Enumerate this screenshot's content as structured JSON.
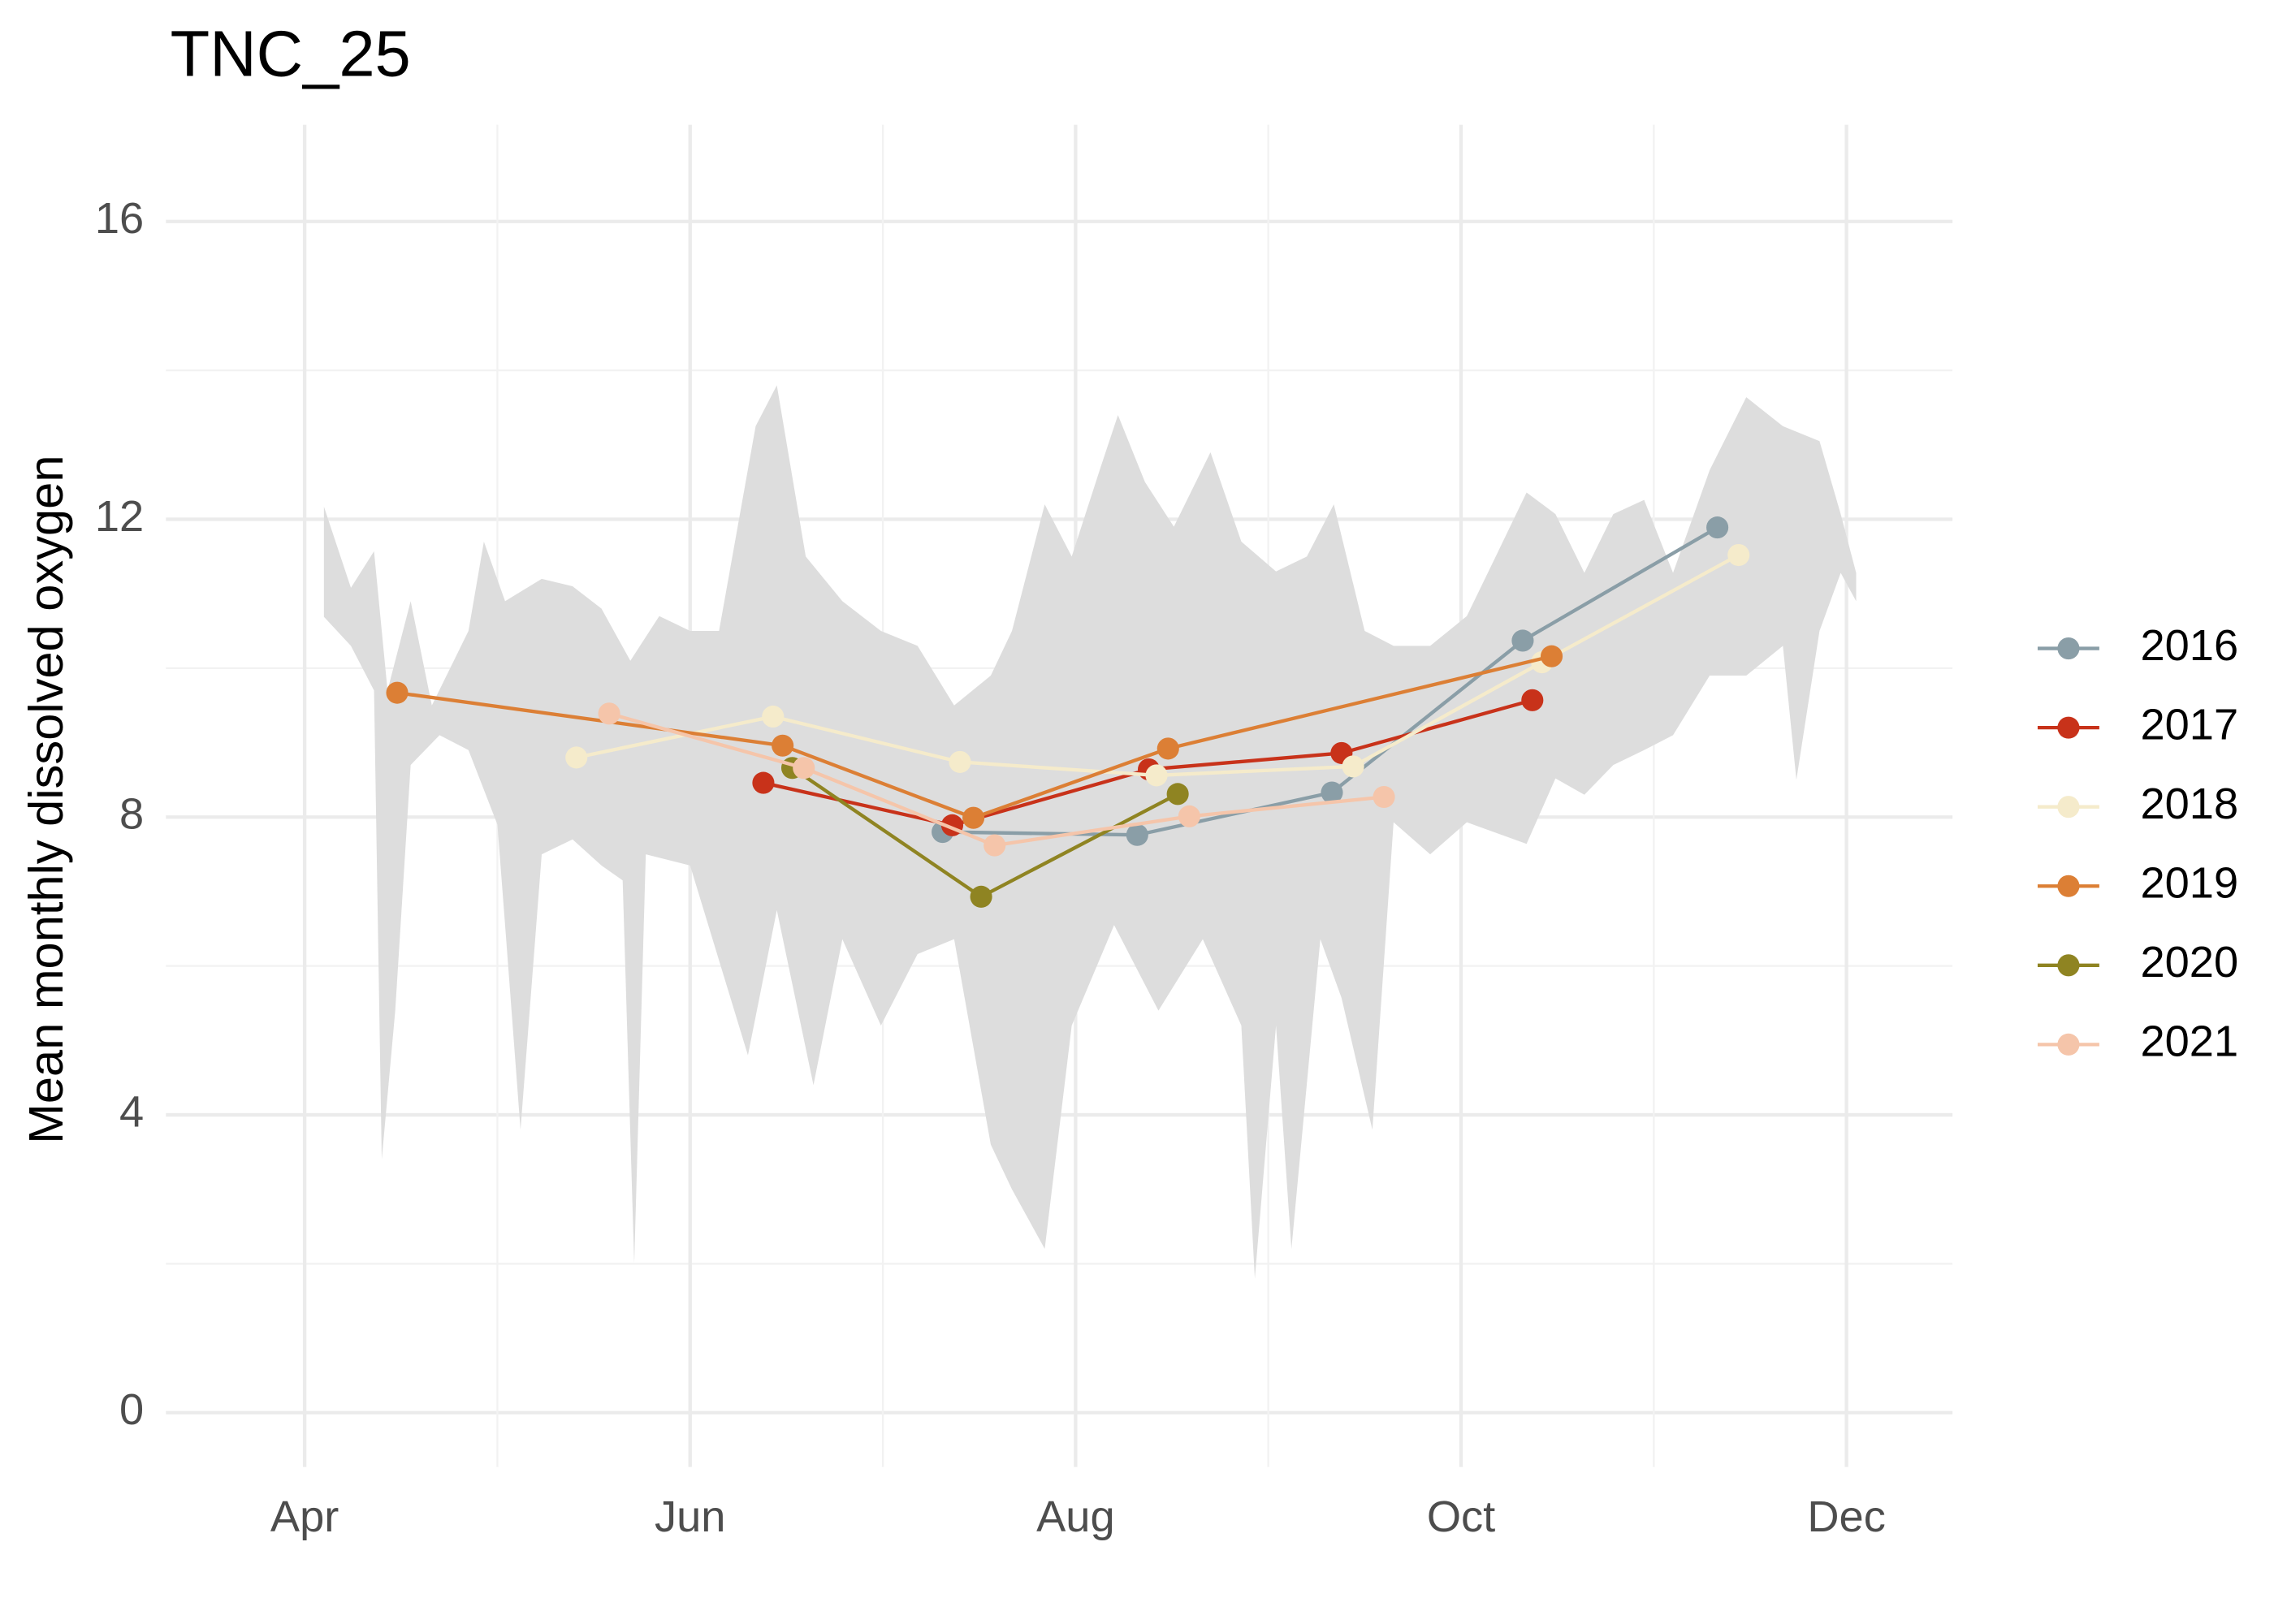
{
  "chart_data": {
    "type": "line",
    "title": "TNC_25",
    "ylabel": "Mean monthly dissolved oxygen",
    "xlim": [
      3.28,
      12.55
    ],
    "ylim": [
      -0.73,
      17.3
    ],
    "xticks": [
      {
        "value": 4,
        "label": "Apr"
      },
      {
        "value": 6,
        "label": "Jun"
      },
      {
        "value": 8,
        "label": "Aug"
      },
      {
        "value": 10,
        "label": "Oct"
      },
      {
        "value": 12,
        "label": "Dec"
      }
    ],
    "yticks": [
      0,
      4,
      8,
      12,
      16
    ],
    "grid": true,
    "legend": "right",
    "band": {
      "color": "#dddddd",
      "upper": {
        "x": [
          4.1,
          4.24,
          4.36,
          4.43,
          4.55,
          4.66,
          4.85,
          4.93,
          5.04,
          5.23,
          5.39,
          5.54,
          5.69,
          5.84,
          6.0,
          6.15,
          6.34,
          6.45,
          6.6,
          6.79,
          6.99,
          7.18,
          7.37,
          7.56,
          7.67,
          7.84,
          7.98,
          8.13,
          8.22,
          8.36,
          8.51,
          8.7,
          8.86,
          9.04,
          9.2,
          9.34,
          9.5,
          9.65,
          9.84,
          10.03,
          10.18,
          10.34,
          10.49,
          10.64,
          10.79,
          10.95,
          11.1,
          11.29,
          11.48,
          11.67,
          11.86,
          11.97,
          12.05
        ],
        "values": [
          12.17,
          11.08,
          11.57,
          9.7,
          10.9,
          9.5,
          10.5,
          11.7,
          10.9,
          11.2,
          11.1,
          10.8,
          10.1,
          10.7,
          10.5,
          10.5,
          13.25,
          13.8,
          11.5,
          10.9,
          10.5,
          10.3,
          9.5,
          9.9,
          10.5,
          12.2,
          11.5,
          12.7,
          13.4,
          12.5,
          11.9,
          12.9,
          11.7,
          11.3,
          11.5,
          12.2,
          10.5,
          10.3,
          10.3,
          10.7,
          11.5,
          12.36,
          12.07,
          11.28,
          12.07,
          12.26,
          11.28,
          12.66,
          13.64,
          13.25,
          13.05,
          12.07,
          11.28
        ]
      },
      "lower": {
        "x": [
          4.1,
          4.24,
          4.36,
          4.4,
          4.47,
          4.55,
          4.7,
          4.85,
          5.0,
          5.04,
          5.12,
          5.23,
          5.39,
          5.54,
          5.65,
          5.71,
          5.77,
          6.0,
          6.3,
          6.45,
          6.64,
          6.79,
          6.99,
          7.18,
          7.37,
          7.56,
          7.67,
          7.84,
          7.98,
          8.2,
          8.43,
          8.66,
          8.86,
          8.93,
          9.04,
          9.12,
          9.27,
          9.38,
          9.54,
          9.65,
          9.84,
          10.03,
          10.34,
          10.49,
          10.64,
          10.79,
          10.95,
          11.1,
          11.29,
          11.48,
          11.67,
          11.74,
          11.86,
          11.97,
          12.05
        ],
        "values": [
          10.69,
          10.3,
          9.7,
          3.4,
          5.4,
          8.7,
          9.1,
          8.9,
          7.9,
          6.55,
          3.8,
          7.5,
          7.7,
          7.35,
          7.15,
          2.0,
          7.5,
          7.35,
          4.8,
          6.75,
          4.4,
          6.36,
          5.2,
          6.16,
          6.36,
          3.6,
          3.0,
          2.2,
          5.2,
          6.55,
          5.4,
          6.36,
          5.2,
          1.8,
          5.2,
          2.2,
          6.36,
          5.57,
          3.8,
          7.93,
          7.5,
          7.93,
          7.64,
          8.52,
          8.3,
          8.7,
          8.9,
          9.1,
          9.9,
          9.9,
          10.3,
          8.5,
          10.5,
          11.28,
          10.9
        ]
      }
    },
    "series": [
      {
        "name": "2016",
        "color": "#8a9ea7",
        "x": [
          7.31,
          8.32,
          9.33,
          10.32,
          11.33
        ],
        "values": [
          7.8,
          7.76,
          8.33,
          10.37,
          11.89
        ]
      },
      {
        "name": "2017",
        "color": "#c8321a",
        "x": [
          6.38,
          7.36,
          8.38,
          9.38,
          10.37
        ],
        "values": [
          8.46,
          7.89,
          8.64,
          8.86,
          9.57
        ]
      },
      {
        "name": "2018",
        "color": "#f5ebcb",
        "x": [
          5.41,
          6.43,
          7.4,
          8.42,
          9.44,
          10.42,
          11.44
        ],
        "values": [
          8.8,
          9.35,
          8.74,
          8.56,
          8.68,
          10.08,
          11.52
        ]
      },
      {
        "name": "2019",
        "color": "#dc7f35",
        "x": [
          4.48,
          6.48,
          7.47,
          8.48,
          10.47
        ],
        "values": [
          9.67,
          8.96,
          7.99,
          8.92,
          10.16
        ]
      },
      {
        "name": "2020",
        "color": "#8f8422",
        "x": [
          6.53,
          7.51,
          8.53
        ],
        "values": [
          8.66,
          6.93,
          8.31
        ]
      },
      {
        "name": "2021",
        "color": "#f5c5aa",
        "x": [
          5.58,
          6.59,
          7.58,
          8.59,
          9.6
        ],
        "values": [
          9.39,
          8.66,
          7.62,
          8.01,
          8.27
        ]
      }
    ]
  }
}
